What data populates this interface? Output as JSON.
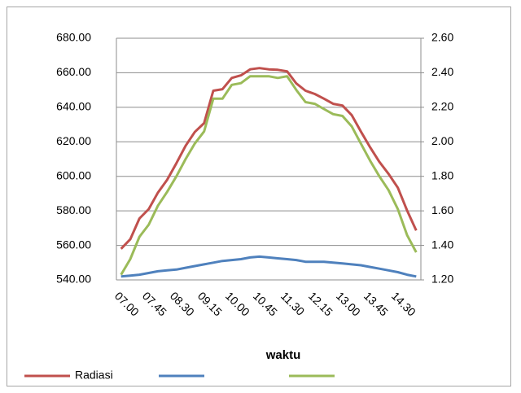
{
  "chart_data": {
    "type": "line",
    "xlabel": "waktu",
    "categories": [
      "07.00",
      null,
      null,
      "07.45",
      null,
      null,
      "08.30",
      null,
      null,
      "09.15",
      null,
      null,
      "10.00",
      null,
      null,
      "10.45",
      null,
      null,
      "11.30",
      null,
      null,
      "12.15",
      null,
      null,
      "13.00",
      null,
      null,
      "13.45",
      null,
      null,
      "14.30",
      null,
      null
    ],
    "series": [
      {
        "name": "Radiasi",
        "color": "#c0504d",
        "values": [
          558,
          563.5,
          575.6,
          581,
          590.6,
          598,
          607.6,
          617.7,
          625.7,
          630.8,
          649.6,
          650.5,
          657,
          658.5,
          662,
          662.7,
          662,
          661.7,
          660.8,
          653.8,
          649.6,
          647.7,
          645,
          642,
          641,
          635.5,
          626,
          616.8,
          608.4,
          601.4,
          593.4,
          580.3,
          568.6
        ]
      },
      {
        "color": "#4f81bd",
        "values": [
          542,
          542.5,
          543,
          544,
          545,
          545.5,
          546,
          547,
          548,
          549,
          550,
          551,
          551.5,
          552,
          553,
          553.5,
          553,
          552.5,
          552,
          551.5,
          550.5,
          550.5,
          550.5,
          550,
          549.5,
          549,
          548.5,
          547.5,
          546.5,
          545.5,
          544.5,
          543,
          542
        ]
      },
      {
        "color": "#9bbb59",
        "axis": "y2",
        "values": [
          1.23,
          1.32,
          1.45,
          1.52,
          1.63,
          1.71,
          1.8,
          1.9,
          1.99,
          2.06,
          2.25,
          2.25,
          2.33,
          2.34,
          2.38,
          2.38,
          2.38,
          2.37,
          2.38,
          2.3,
          2.23,
          2.22,
          2.19,
          2.16,
          2.15,
          2.09,
          1.99,
          1.89,
          1.8,
          1.72,
          1.61,
          1.46,
          1.36
        ]
      }
    ],
    "ylim": [
      540,
      680
    ],
    "yticks": [
      {
        "value": 540,
        "label": "540.00"
      },
      {
        "value": 560,
        "label": "560.00"
      },
      {
        "value": 580,
        "label": "580.00"
      },
      {
        "value": 600,
        "label": "600.00"
      },
      {
        "value": 620,
        "label": "620.00"
      },
      {
        "value": 640,
        "label": "640.00"
      },
      {
        "value": 660,
        "label": "660.00"
      },
      {
        "value": 680,
        "label": "680.00"
      }
    ],
    "y2lim": [
      1.2,
      2.6
    ],
    "y2ticks": [
      {
        "value": 1.2,
        "label": "1.20"
      },
      {
        "value": 1.4,
        "label": "1.40"
      },
      {
        "value": 1.6,
        "label": "1.60"
      },
      {
        "value": 1.8,
        "label": "1.80"
      },
      {
        "value": 2.0,
        "label": "2.00"
      },
      {
        "value": 2.2,
        "label": "2.20"
      },
      {
        "value": 2.4,
        "label": "2.40"
      },
      {
        "value": 2.6,
        "label": "2.60"
      }
    ],
    "grid": true
  }
}
